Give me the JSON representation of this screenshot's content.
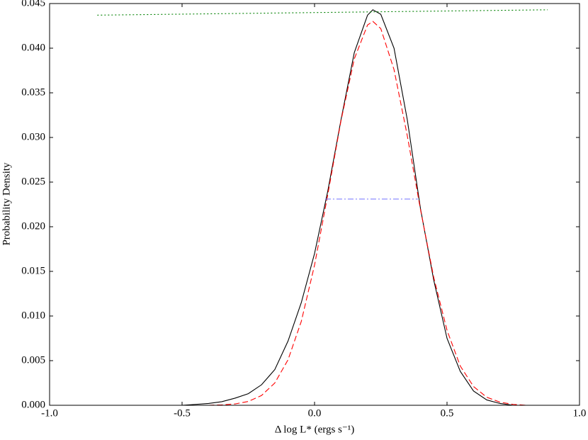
{
  "chart_data": {
    "type": "line",
    "xlabel": "Δ log L* (ergs s⁻¹)",
    "ylabel": "Probability Density",
    "xlim": [
      -1.0,
      1.0
    ],
    "ylim": [
      0.0,
      0.045
    ],
    "xticks": [
      {
        "value": -1.0,
        "label": "-1.0"
      },
      {
        "value": -0.5,
        "label": "-0.5"
      },
      {
        "value": 0.0,
        "label": "0.0"
      },
      {
        "value": 0.5,
        "label": "0.5"
      },
      {
        "value": 1.0,
        "label": "1.0"
      }
    ],
    "yticks": [
      {
        "value": 0.0,
        "label": "0.000"
      },
      {
        "value": 0.005,
        "label": "0.005"
      },
      {
        "value": 0.01,
        "label": "0.010"
      },
      {
        "value": 0.015,
        "label": "0.015"
      },
      {
        "value": 0.02,
        "label": "0.020"
      },
      {
        "value": 0.025,
        "label": "0.025"
      },
      {
        "value": 0.03,
        "label": "0.030"
      },
      {
        "value": 0.035,
        "label": "0.035"
      },
      {
        "value": 0.04,
        "label": "0.040"
      },
      {
        "value": 0.045,
        "label": "0.045"
      }
    ],
    "series": [
      {
        "color": "#000000",
        "style": "solid",
        "x": [
          -0.5,
          -0.45,
          -0.4,
          -0.35,
          -0.3,
          -0.25,
          -0.2,
          -0.15,
          -0.1,
          -0.05,
          0.0,
          0.05,
          0.1,
          0.15,
          0.2,
          0.22,
          0.25,
          0.3,
          0.35,
          0.4,
          0.45,
          0.5,
          0.55,
          0.6,
          0.65,
          0.7,
          0.75,
          0.8
        ],
        "values": [
          0.0,
          0.0001,
          0.0002,
          0.0004,
          0.0008,
          0.0013,
          0.0023,
          0.004,
          0.0072,
          0.0115,
          0.017,
          0.024,
          0.032,
          0.0395,
          0.0437,
          0.0443,
          0.0438,
          0.04,
          0.032,
          0.022,
          0.014,
          0.0075,
          0.0038,
          0.0016,
          0.0006,
          0.0002,
          0.0,
          0.0
        ]
      },
      {
        "color": "#ff0000",
        "style": "dashed",
        "x": [
          -0.4,
          -0.35,
          -0.3,
          -0.25,
          -0.2,
          -0.15,
          -0.1,
          -0.05,
          0.0,
          0.05,
          0.1,
          0.15,
          0.2,
          0.22,
          0.25,
          0.3,
          0.35,
          0.4,
          0.45,
          0.5,
          0.55,
          0.6,
          0.65,
          0.7,
          0.75,
          0.8
        ],
        "values": [
          0.0,
          5e-05,
          0.00015,
          0.00043,
          0.0011,
          0.0025,
          0.0051,
          0.0094,
          0.0157,
          0.0236,
          0.0319,
          0.0388,
          0.0426,
          0.043,
          0.0422,
          0.0376,
          0.0302,
          0.0219,
          0.0143,
          0.0084,
          0.0044,
          0.0021,
          0.0009,
          0.00035,
          0.0001,
          0.0
        ]
      },
      {
        "color": "#008000",
        "style": "dotted",
        "x": [
          -0.82,
          0.88
        ],
        "values": [
          0.0437,
          0.0443
        ]
      },
      {
        "color": "#8080ff",
        "style": "dashdot",
        "x": [
          0.04,
          0.39
        ],
        "values": [
          0.0231,
          0.0231
        ]
      }
    ]
  }
}
